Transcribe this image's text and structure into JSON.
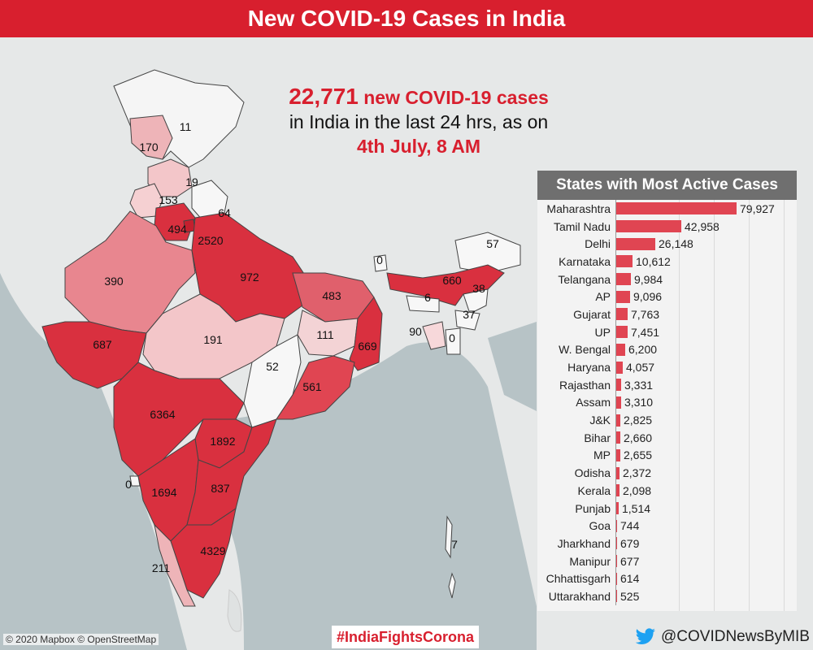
{
  "header": {
    "title": "New COVID-19 Cases in India"
  },
  "headline": {
    "count": "22,771",
    "count_suffix": "new COVID-19 cases",
    "line2": "in India in the last 24 hrs, as on",
    "date": "4th July, 8 AM"
  },
  "map_labels": [
    {
      "state": "Jammu & Kashmir",
      "value": "170"
    },
    {
      "state": "Ladakh",
      "value": "11"
    },
    {
      "state": "Himachal Pradesh",
      "value": "153"
    },
    {
      "state": "Punjab (map)",
      "value": "19"
    },
    {
      "state": "Uttarakhand",
      "value": "64"
    },
    {
      "state": "Haryana",
      "value": "494"
    },
    {
      "state": "Delhi",
      "value": "2520"
    },
    {
      "state": "Rajasthan",
      "value": "390"
    },
    {
      "state": "Uttar Pradesh",
      "value": "972"
    },
    {
      "state": "Bihar",
      "value": "483"
    },
    {
      "state": "Sikkim",
      "value": "0"
    },
    {
      "state": "Arunachal Pradesh",
      "value": "57"
    },
    {
      "state": "Assam",
      "value": "660"
    },
    {
      "state": "Nagaland",
      "value": "38"
    },
    {
      "state": "Meghalaya",
      "value": "6"
    },
    {
      "state": "Manipur",
      "value": "37"
    },
    {
      "state": "Tripura",
      "value": "90"
    },
    {
      "state": "Mizoram",
      "value": "0"
    },
    {
      "state": "Gujarat",
      "value": "687"
    },
    {
      "state": "Madhya Pradesh",
      "value": "191"
    },
    {
      "state": "Jharkhand",
      "value": "111"
    },
    {
      "state": "West Bengal",
      "value": "669"
    },
    {
      "state": "Chhattisgarh",
      "value": "52"
    },
    {
      "state": "Odisha",
      "value": "561"
    },
    {
      "state": "Maharashtra",
      "value": "6364"
    },
    {
      "state": "Telangana",
      "value": "1892"
    },
    {
      "state": "Goa",
      "value": "0"
    },
    {
      "state": "Karnataka",
      "value": "1694"
    },
    {
      "state": "Andhra Pradesh",
      "value": "837"
    },
    {
      "state": "Tamil Nadu",
      "value": "4329"
    },
    {
      "state": "Kerala",
      "value": "211"
    },
    {
      "state": "Andaman & Nicobar",
      "value": "7"
    }
  ],
  "panel": {
    "title": "States with Most Active Cases",
    "max": 79927,
    "rows": [
      {
        "state": "Maharashtra",
        "value": 79927,
        "label": "79,927"
      },
      {
        "state": "Tamil Nadu",
        "value": 42958,
        "label": "42,958"
      },
      {
        "state": "Delhi",
        "value": 26148,
        "label": "26,148"
      },
      {
        "state": "Karnataka",
        "value": 10612,
        "label": "10,612"
      },
      {
        "state": "Telangana",
        "value": 9984,
        "label": "9,984"
      },
      {
        "state": "AP",
        "value": 9096,
        "label": "9,096"
      },
      {
        "state": "Gujarat",
        "value": 7763,
        "label": "7,763"
      },
      {
        "state": "UP",
        "value": 7451,
        "label": "7,451"
      },
      {
        "state": "W. Bengal",
        "value": 6200,
        "label": "6,200"
      },
      {
        "state": "Haryana",
        "value": 4057,
        "label": "4,057"
      },
      {
        "state": "Rajasthan",
        "value": 3331,
        "label": "3,331"
      },
      {
        "state": "Assam",
        "value": 3310,
        "label": "3,310"
      },
      {
        "state": "J&K",
        "value": 2825,
        "label": "2,825"
      },
      {
        "state": "Bihar",
        "value": 2660,
        "label": "2,660"
      },
      {
        "state": "MP",
        "value": 2655,
        "label": "2,655"
      },
      {
        "state": "Odisha",
        "value": 2372,
        "label": "2,372"
      },
      {
        "state": "Kerala",
        "value": 2098,
        "label": "2,098"
      },
      {
        "state": "Punjab",
        "value": 1514,
        "label": "1,514"
      },
      {
        "state": "Goa",
        "value": 744,
        "label": "744"
      },
      {
        "state": "Jharkhand",
        "value": 679,
        "label": "679"
      },
      {
        "state": "Manipur",
        "value": 677,
        "label": "677"
      },
      {
        "state": "Chhattisgarh",
        "value": 614,
        "label": "614"
      },
      {
        "state": "Uttarakhand",
        "value": 525,
        "label": "525"
      }
    ]
  },
  "footer": {
    "attribution": "© 2020 Mapbox © OpenStreetMap",
    "hashtag": "#IndiaFightsCorona",
    "twitter": "@COVIDNewsByMIB"
  },
  "colors": {
    "accent_red": "#d81f2e",
    "bar_red": "#e04552",
    "panel_header": "#6f6f6f"
  }
}
